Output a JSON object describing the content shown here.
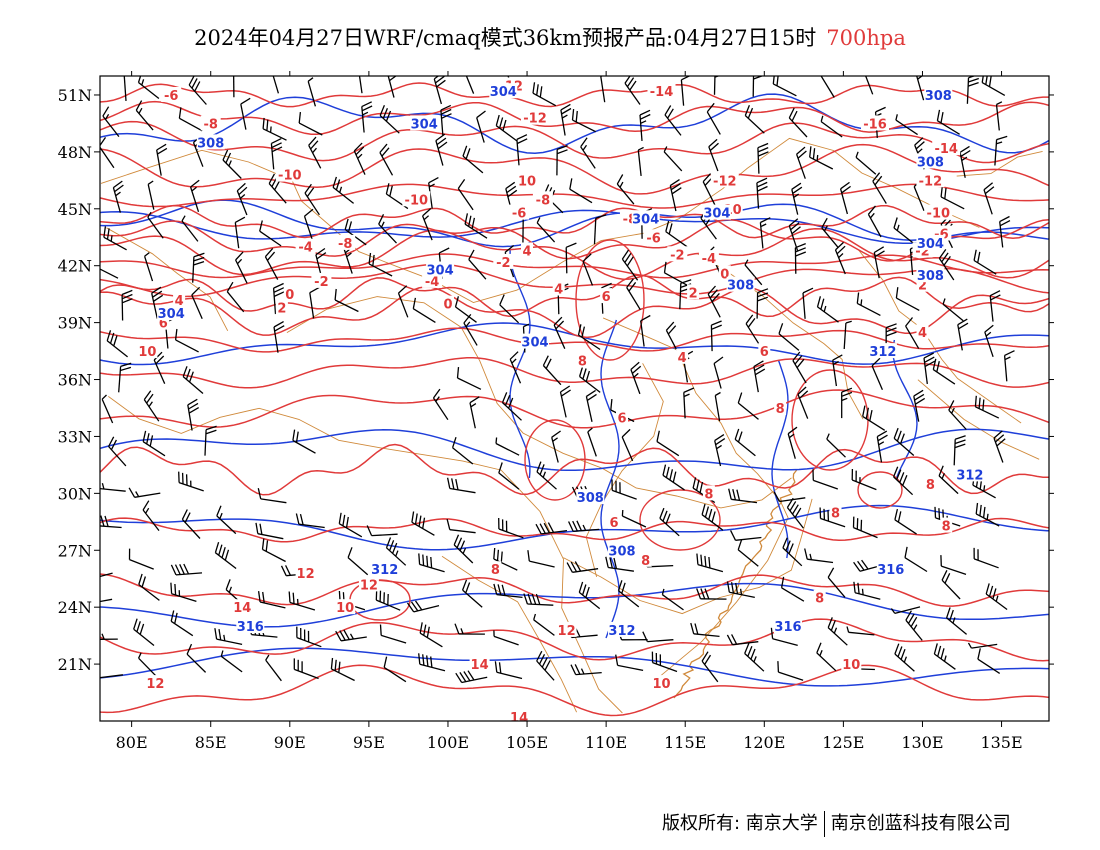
{
  "header": {
    "title": "2024年04月27日WRF/cmaq模式36km预报产品:04月27日15时",
    "level": "700hpa",
    "level_color": "#e03a3a"
  },
  "map": {
    "lon_range": [
      78,
      138
    ],
    "lat_range": [
      18,
      52
    ],
    "lon_ticks": [
      {
        "value": 80,
        "label": "80E"
      },
      {
        "value": 85,
        "label": "85E"
      },
      {
        "value": 90,
        "label": "90E"
      },
      {
        "value": 95,
        "label": "95E"
      },
      {
        "value": 100,
        "label": "100E"
      },
      {
        "value": 105,
        "label": "105E"
      },
      {
        "value": 110,
        "label": "110E"
      },
      {
        "value": 115,
        "label": "115E"
      },
      {
        "value": 120,
        "label": "120E"
      },
      {
        "value": 125,
        "label": "125E"
      },
      {
        "value": 130,
        "label": "130E"
      },
      {
        "value": 135,
        "label": "135E"
      }
    ],
    "lat_ticks": [
      {
        "value": 51,
        "label": "51N"
      },
      {
        "value": 48,
        "label": "48N"
      },
      {
        "value": 45,
        "label": "45N"
      },
      {
        "value": 42,
        "label": "42N"
      },
      {
        "value": 39,
        "label": "39N"
      },
      {
        "value": 36,
        "label": "36N"
      },
      {
        "value": 33,
        "label": "33N"
      },
      {
        "value": 30,
        "label": "30N"
      },
      {
        "value": 27,
        "label": "27N"
      },
      {
        "value": 24,
        "label": "24N"
      },
      {
        "value": 21,
        "label": "21N"
      }
    ],
    "colors": {
      "temperature": "#e03a3a",
      "geopotential": "#1f3fd9",
      "border": "#d08a3c",
      "wind": "#000000"
    },
    "temperature_labels": [
      {
        "lon": 82.5,
        "lat": 51.0,
        "text": "-6"
      },
      {
        "lon": 85.0,
        "lat": 49.5,
        "text": "-8"
      },
      {
        "lon": 90.0,
        "lat": 46.8,
        "text": "-10"
      },
      {
        "lon": 98.0,
        "lat": 45.5,
        "text": "-10"
      },
      {
        "lon": 93.5,
        "lat": 43.2,
        "text": "-8"
      },
      {
        "lon": 91.0,
        "lat": 43.0,
        "text": "-4"
      },
      {
        "lon": 92.0,
        "lat": 41.2,
        "text": "-2"
      },
      {
        "lon": 90.0,
        "lat": 40.5,
        "text": "0"
      },
      {
        "lon": 89.5,
        "lat": 39.8,
        "text": "2"
      },
      {
        "lon": 83.0,
        "lat": 40.2,
        "text": "4"
      },
      {
        "lon": 82.0,
        "lat": 39.0,
        "text": "6"
      },
      {
        "lon": 81.0,
        "lat": 37.5,
        "text": "10"
      },
      {
        "lon": 106.0,
        "lat": 45.5,
        "text": "-8"
      },
      {
        "lon": 104.5,
        "lat": 44.8,
        "text": "-6"
      },
      {
        "lon": 105.0,
        "lat": 46.5,
        "text": "10"
      },
      {
        "lon": 99.0,
        "lat": 41.2,
        "text": "-4"
      },
      {
        "lon": 103.5,
        "lat": 42.2,
        "text": "-2"
      },
      {
        "lon": 105.0,
        "lat": 42.8,
        "text": "4"
      },
      {
        "lon": 100.0,
        "lat": 40.0,
        "text": "0"
      },
      {
        "lon": 107.0,
        "lat": 40.8,
        "text": "4"
      },
      {
        "lon": 110.0,
        "lat": 40.4,
        "text": "6"
      },
      {
        "lon": 105.5,
        "lat": 49.8,
        "text": "-12"
      },
      {
        "lon": 104.0,
        "lat": 51.5,
        "text": "-12"
      },
      {
        "lon": 113.5,
        "lat": 51.2,
        "text": "-14"
      },
      {
        "lon": 111.5,
        "lat": 44.5,
        "text": "-8"
      },
      {
        "lon": 113.0,
        "lat": 43.5,
        "text": "-6"
      },
      {
        "lon": 114.5,
        "lat": 42.6,
        "text": "-2"
      },
      {
        "lon": 116.5,
        "lat": 42.4,
        "text": "-4"
      },
      {
        "lon": 117.5,
        "lat": 41.6,
        "text": "0"
      },
      {
        "lon": 115.5,
        "lat": 40.6,
        "text": "2"
      },
      {
        "lon": 118.0,
        "lat": 45.0,
        "text": "10"
      },
      {
        "lon": 117.5,
        "lat": 46.5,
        "text": "-12"
      },
      {
        "lon": 127.0,
        "lat": 49.5,
        "text": "-16"
      },
      {
        "lon": 131.5,
        "lat": 48.2,
        "text": "-14"
      },
      {
        "lon": 130.5,
        "lat": 46.5,
        "text": "-12"
      },
      {
        "lon": 131.0,
        "lat": 44.8,
        "text": "-10"
      },
      {
        "lon": 131.2,
        "lat": 43.7,
        "text": "-6"
      },
      {
        "lon": 130.0,
        "lat": 42.8,
        "text": "-2"
      },
      {
        "lon": 130.0,
        "lat": 41.0,
        "text": "2"
      },
      {
        "lon": 130.0,
        "lat": 38.5,
        "text": "4"
      },
      {
        "lon": 108.5,
        "lat": 37.0,
        "text": "8"
      },
      {
        "lon": 114.8,
        "lat": 37.2,
        "text": "4"
      },
      {
        "lon": 120.0,
        "lat": 37.5,
        "text": "6"
      },
      {
        "lon": 121.0,
        "lat": 34.5,
        "text": "8"
      },
      {
        "lon": 111.0,
        "lat": 34.0,
        "text": "6"
      },
      {
        "lon": 116.5,
        "lat": 30.0,
        "text": "8"
      },
      {
        "lon": 110.5,
        "lat": 28.5,
        "text": "6"
      },
      {
        "lon": 112.5,
        "lat": 26.5,
        "text": "8"
      },
      {
        "lon": 124.5,
        "lat": 29.0,
        "text": "8"
      },
      {
        "lon": 130.5,
        "lat": 30.5,
        "text": "8"
      },
      {
        "lon": 131.5,
        "lat": 28.3,
        "text": "8"
      },
      {
        "lon": 123.5,
        "lat": 24.5,
        "text": "8"
      },
      {
        "lon": 91.0,
        "lat": 25.8,
        "text": "12"
      },
      {
        "lon": 95.0,
        "lat": 25.2,
        "text": "12"
      },
      {
        "lon": 93.5,
        "lat": 24.0,
        "text": "10"
      },
      {
        "lon": 87.0,
        "lat": 24.0,
        "text": "14"
      },
      {
        "lon": 81.5,
        "lat": 20.0,
        "text": "12"
      },
      {
        "lon": 103.0,
        "lat": 26.0,
        "text": "8"
      },
      {
        "lon": 107.5,
        "lat": 22.8,
        "text": "12"
      },
      {
        "lon": 102.0,
        "lat": 21.0,
        "text": "14"
      },
      {
        "lon": 104.5,
        "lat": 18.2,
        "text": "14"
      },
      {
        "lon": 113.5,
        "lat": 20.0,
        "text": "10"
      },
      {
        "lon": 125.5,
        "lat": 21.0,
        "text": "10"
      }
    ],
    "geopotential_labels": [
      {
        "lon": 85.0,
        "lat": 48.5,
        "text": "308"
      },
      {
        "lon": 98.5,
        "lat": 49.5,
        "text": "304"
      },
      {
        "lon": 103.5,
        "lat": 51.2,
        "text": "304"
      },
      {
        "lon": 112.5,
        "lat": 44.5,
        "text": "304"
      },
      {
        "lon": 117.0,
        "lat": 44.8,
        "text": "304"
      },
      {
        "lon": 99.5,
        "lat": 41.8,
        "text": "304"
      },
      {
        "lon": 82.5,
        "lat": 39.5,
        "text": "304"
      },
      {
        "lon": 105.5,
        "lat": 38.0,
        "text": "304"
      },
      {
        "lon": 118.5,
        "lat": 41.0,
        "text": "308"
      },
      {
        "lon": 131.0,
        "lat": 51.0,
        "text": "308"
      },
      {
        "lon": 130.5,
        "lat": 47.5,
        "text": "308"
      },
      {
        "lon": 130.5,
        "lat": 43.2,
        "text": "304"
      },
      {
        "lon": 130.5,
        "lat": 41.5,
        "text": "308"
      },
      {
        "lon": 127.5,
        "lat": 37.5,
        "text": "312"
      },
      {
        "lon": 109.0,
        "lat": 29.8,
        "text": "308"
      },
      {
        "lon": 111.0,
        "lat": 27.0,
        "text": "308"
      },
      {
        "lon": 96.0,
        "lat": 26.0,
        "text": "312"
      },
      {
        "lon": 111.0,
        "lat": 22.8,
        "text": "312"
      },
      {
        "lon": 121.5,
        "lat": 23.0,
        "text": "316"
      },
      {
        "lon": 128.0,
        "lat": 26.0,
        "text": "316"
      },
      {
        "lon": 133.0,
        "lat": 31.0,
        "text": "312"
      },
      {
        "lon": 87.5,
        "lat": 23.0,
        "text": "316"
      }
    ]
  },
  "footer": {
    "copyright": "版权所有: 南京大学",
    "company": "南京创蓝科技有限公司"
  }
}
